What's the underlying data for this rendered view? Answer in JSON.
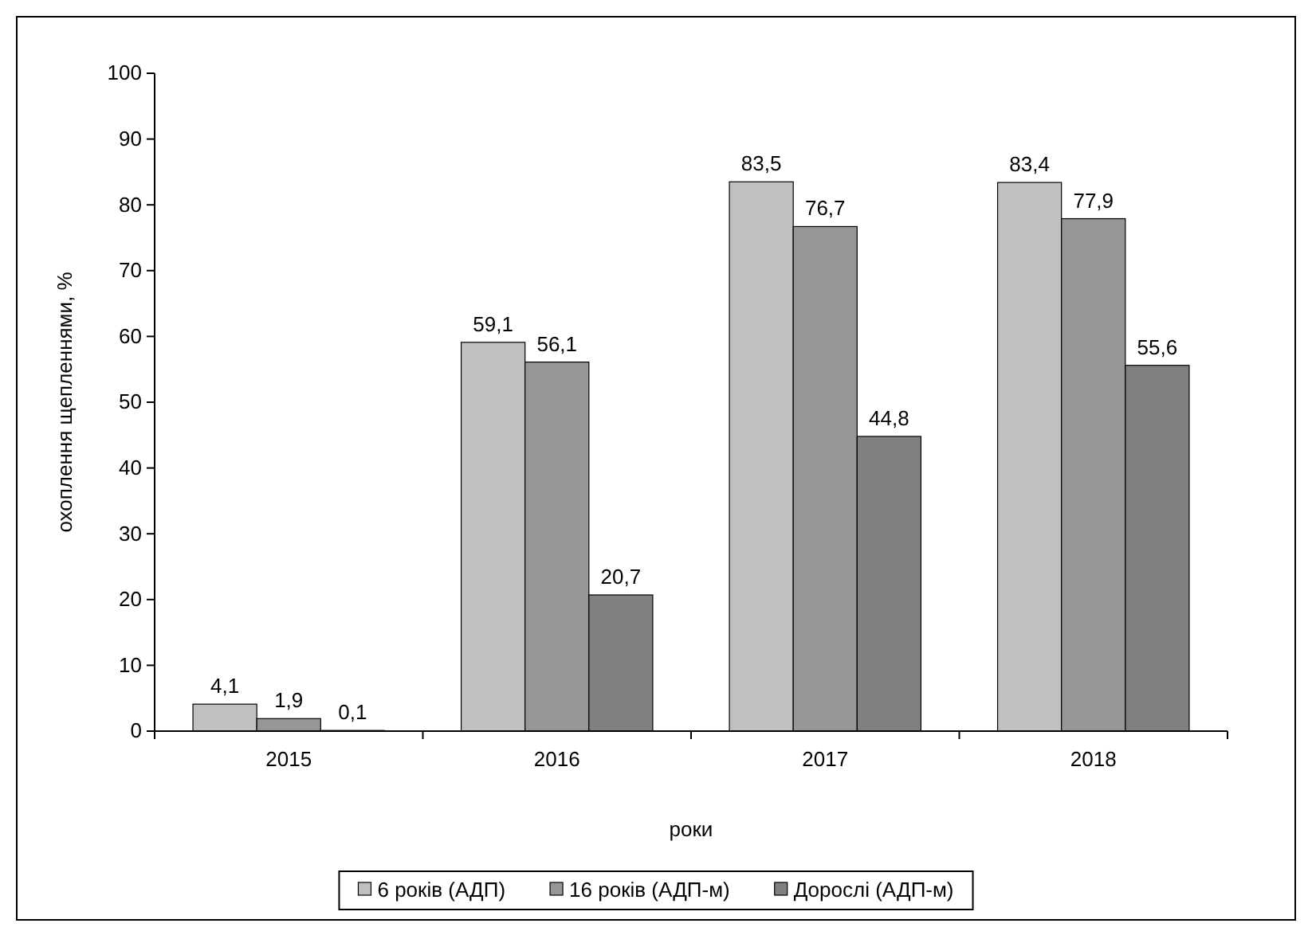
{
  "chart_data": {
    "type": "bar",
    "xlabel": "роки",
    "ylabel": "охоплення щепленнями, %",
    "categories": [
      "2015",
      "2016",
      "2017",
      "2018"
    ],
    "series": [
      {
        "name": "6 років (АДП)",
        "color": "#c0c0c0",
        "values": [
          4.1,
          59.1,
          83.5,
          83.4
        ],
        "value_labels": [
          "4,1",
          "59,1",
          "83,5",
          "83,4"
        ]
      },
      {
        "name": "16 років (АДП-м)",
        "color": "#969696",
        "values": [
          1.9,
          56.1,
          76.7,
          77.9
        ],
        "value_labels": [
          "1,9",
          "56,1",
          "76,7",
          "77,9"
        ]
      },
      {
        "name": "Дорослі (АДП-м)",
        "color": "#808080",
        "values": [
          0.1,
          20.7,
          44.8,
          55.6
        ],
        "value_labels": [
          "0,1",
          "20,7",
          "44,8",
          "55,6"
        ]
      }
    ],
    "ylim": [
      0,
      100
    ],
    "yticks": [
      0,
      10,
      20,
      30,
      40,
      50,
      60,
      70,
      80,
      90,
      100
    ],
    "legend": "bottom"
  }
}
